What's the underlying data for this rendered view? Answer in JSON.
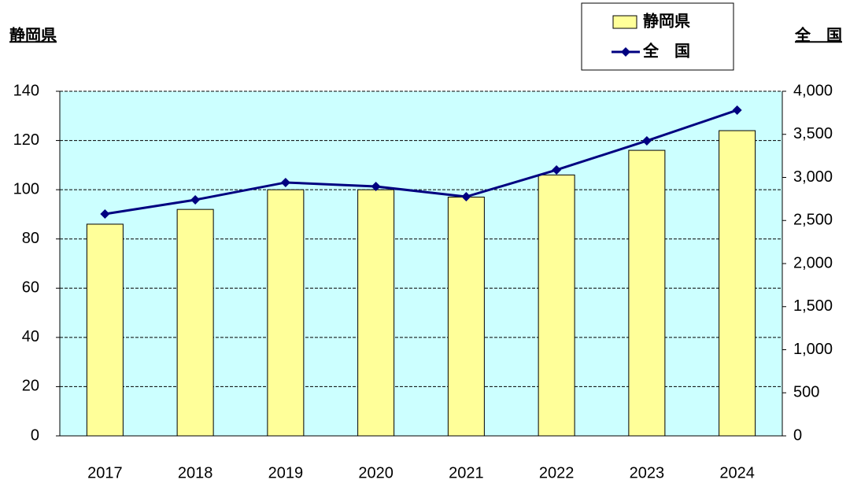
{
  "chart_data": {
    "type": "bar_line",
    "y_label": "静岡県",
    "y2_label": "全　国",
    "categories": [
      "2017",
      "2018",
      "2019",
      "2020",
      "2021",
      "2022",
      "2023",
      "2024"
    ],
    "series": [
      {
        "name": "静岡県",
        "type": "bar",
        "color": "#ffff99",
        "values": [
          86,
          92,
          100,
          100,
          97,
          106,
          116,
          124
        ]
      },
      {
        "name": "全　国",
        "type": "line",
        "color": "#000080",
        "axis": "y2",
        "values": [
          2575,
          2740,
          2941,
          2895,
          2776,
          3087,
          3425,
          3781
        ]
      }
    ],
    "ylim": [
      0,
      140
    ],
    "yticks": [
      0,
      20,
      40,
      60,
      80,
      100,
      120,
      140
    ],
    "y2lim": [
      0,
      4000
    ],
    "y2ticks": [
      0,
      500,
      {
        "value": 1000,
        "label": "1,000"
      },
      {
        "value": 1500,
        "label": "1,500"
      },
      {
        "value": 2000,
        "label": "2,000"
      },
      {
        "value": 2500,
        "label": "2,500"
      },
      {
        "value": 3000,
        "label": "3,000"
      },
      {
        "value": 3500,
        "label": "3,500"
      },
      {
        "value": 4000,
        "label": "4,000"
      }
    ],
    "grid": true,
    "plot_background": "#ccffff",
    "legend": "top-right"
  }
}
